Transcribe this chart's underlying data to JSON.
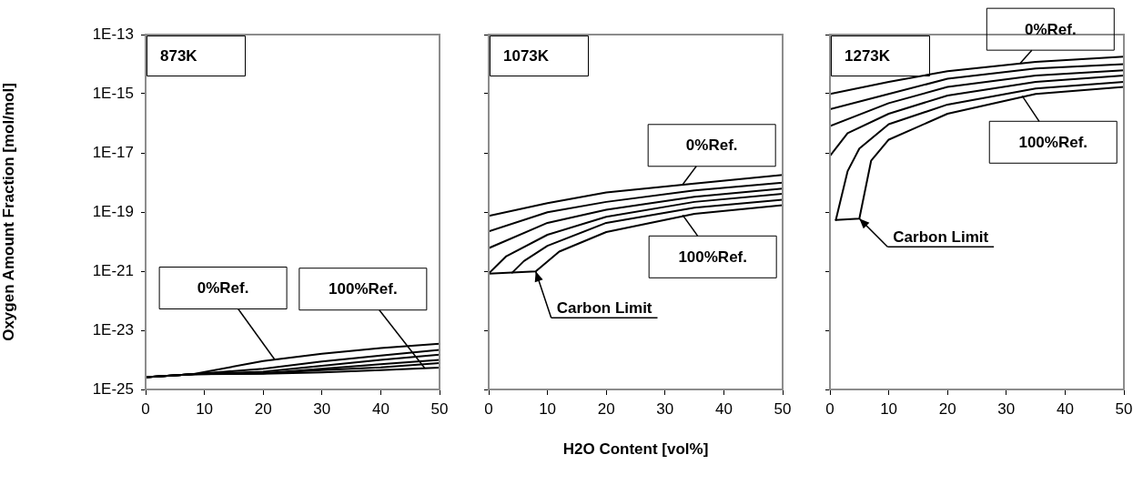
{
  "chart_data": [
    {
      "type": "line",
      "title": "873K",
      "ylabel": "Oxygen Amount Fraction [mol/mol]",
      "log": "y",
      "legend": false,
      "marker": "none",
      "xlim": [
        0,
        50
      ],
      "xticks": [
        0,
        10,
        20,
        30,
        40,
        50
      ],
      "ylim": [
        1e-25,
        1e-13
      ],
      "yticks": [
        {
          "value": 1e-25,
          "label": "1E-25"
        },
        {
          "value": 1e-23,
          "label": "1E-23"
        },
        {
          "value": 1e-21,
          "label": "1E-21"
        },
        {
          "value": 1e-19,
          "label": "1E-19"
        },
        {
          "value": 1e-17,
          "label": "1E-17"
        },
        {
          "value": 1e-15,
          "label": "1E-15"
        },
        {
          "value": 1e-13,
          "label": "1E-13"
        }
      ],
      "series": [
        {
          "color": "#000000",
          "x": [
            0,
            8,
            20,
            30,
            40,
            50
          ],
          "values": [
            2.6e-25,
            3.3e-25,
            9.1e-25,
            1.6e-24,
            2.5e-24,
            3.5e-24
          ]
        },
        {
          "color": "#000000",
          "x": [
            0,
            8,
            20,
            30,
            40,
            50
          ],
          "values": [
            2.6e-25,
            3.3e-25,
            5e-25,
            8.9e-25,
            1.4e-24,
            2.2e-24
          ]
        },
        {
          "color": "#000000",
          "x": [
            0,
            8,
            20,
            30,
            40,
            50
          ],
          "values": [
            2.6e-25,
            3.3e-25,
            4e-25,
            6.3e-25,
            1e-24,
            1.5e-24
          ]
        },
        {
          "color": "#000000",
          "x": [
            0,
            8,
            20,
            30,
            40,
            50
          ],
          "values": [
            2.6e-25,
            3.3e-25,
            3.5e-25,
            5e-25,
            7.1e-25,
            1e-24
          ]
        },
        {
          "color": "#000000",
          "x": [
            0,
            8,
            20,
            30,
            40,
            50
          ],
          "values": [
            2.6e-25,
            3.3e-25,
            3.5e-25,
            4.5e-25,
            5.6e-25,
            7.8e-25
          ]
        },
        {
          "color": "#000000",
          "x": [
            0,
            8,
            20,
            30,
            40,
            50
          ],
          "values": [
            2.6e-25,
            3.3e-25,
            3.4e-25,
            3.8e-25,
            4.5e-25,
            5.5e-25
          ]
        }
      ],
      "annotations": [
        {
          "text": "0%Ref.",
          "x": 22,
          "y": 1e-24
        },
        {
          "text": "100%Ref.",
          "x": 47.5,
          "y": 5.2e-25
        }
      ]
    },
    {
      "type": "line",
      "title": "1073K",
      "xlabel": "H2O Content [vol%]",
      "log": "y",
      "legend": false,
      "marker": "none",
      "tick_labels": "x",
      "xlim": [
        0,
        50
      ],
      "xticks": [
        0,
        10,
        20,
        30,
        40,
        50
      ],
      "ylim": [
        1e-25,
        1e-13
      ],
      "yticks": [
        {
          "value": 1e-25,
          "label": null
        },
        {
          "value": 1e-23,
          "label": null
        },
        {
          "value": 1e-21,
          "label": null
        },
        {
          "value": 1e-19,
          "label": null
        },
        {
          "value": 1e-17,
          "label": null
        },
        {
          "value": 1e-15,
          "label": null
        },
        {
          "value": 1e-13,
          "label": null
        }
      ],
      "series": [
        {
          "color": "#000000",
          "x": [
            0,
            10,
            20,
            35,
            50
          ],
          "values": [
            7.4e-20,
            2e-19,
            4.6e-19,
            9.1e-19,
            1.8e-18
          ]
        },
        {
          "color": "#000000",
          "x": [
            0,
            10,
            20,
            35,
            50
          ],
          "values": [
            2.2e-20,
            9.8e-20,
            2.2e-19,
            5.4e-19,
            9.8e-19
          ]
        },
        {
          "color": "#000000",
          "x": [
            0,
            10,
            20,
            35,
            50
          ],
          "values": [
            6e-21,
            4.3e-20,
            1.2e-19,
            3.3e-19,
            6.2e-19
          ]
        },
        {
          "color": "#000000",
          "x": [
            0,
            3,
            10,
            20,
            35,
            50
          ],
          "values": [
            8.3e-22,
            3.2e-21,
            1.7e-20,
            6.9e-20,
            2.2e-19,
            4.1e-19
          ]
        },
        {
          "color": "#000000",
          "x": [
            4,
            6,
            10,
            20,
            35,
            50
          ],
          "values": [
            8.9e-22,
            2.2e-21,
            7.2e-21,
            4.3e-20,
            1.4e-19,
            2.6e-19
          ]
        },
        {
          "color": "#000000",
          "x": [
            0,
            8,
            12,
            20,
            35,
            50
          ],
          "values": [
            8.3e-22,
            9.8e-22,
            4.6e-21,
            2.1e-20,
            8.7e-20,
            1.7e-19
          ]
        }
      ],
      "annotations": [
        {
          "text": "0%Ref.",
          "x": 33,
          "y": 8.5e-19
        },
        {
          "text": "100%Ref.",
          "x": 33,
          "y": 7.9e-20
        },
        {
          "text": "Carbon Limit",
          "x": 8,
          "y": 9.8e-22
        }
      ]
    },
    {
      "type": "line",
      "title": "1273K",
      "log": "y",
      "legend": false,
      "marker": "none",
      "tick_labels": "x",
      "xlim": [
        0,
        50
      ],
      "xticks": [
        0,
        10,
        20,
        30,
        40,
        50
      ],
      "ylim": [
        1e-25,
        1e-13
      ],
      "yticks": [
        {
          "value": 1e-25,
          "label": null
        },
        {
          "value": 1e-23,
          "label": null
        },
        {
          "value": 1e-21,
          "label": null
        },
        {
          "value": 1e-19,
          "label": null
        },
        {
          "value": 1e-17,
          "label": null
        },
        {
          "value": 1e-15,
          "label": null
        },
        {
          "value": 1e-13,
          "label": null
        }
      ],
      "series": [
        {
          "color": "#000000",
          "x": [
            0,
            10,
            20,
            35,
            50
          ],
          "values": [
            9.8e-16,
            2.5e-15,
            5.8e-15,
            1.2e-14,
            1.8e-14
          ]
        },
        {
          "color": "#000000",
          "x": [
            0,
            10,
            20,
            35,
            50
          ],
          "values": [
            3e-16,
            9.8e-16,
            3.2e-15,
            7.2e-15,
            1e-14
          ]
        },
        {
          "color": "#000000",
          "x": [
            0,
            10,
            20,
            35,
            50
          ],
          "values": [
            8.1e-17,
            4.8e-16,
            1.7e-15,
            4.1e-15,
            6.2e-15
          ]
        },
        {
          "color": "#000000",
          "x": [
            0,
            3,
            10,
            20,
            35,
            50
          ],
          "values": [
            7.8e-18,
            4.6e-17,
            2.1e-16,
            8.7e-16,
            2.5e-15,
            4.1e-15
          ]
        },
        {
          "color": "#000000",
          "x": [
            1,
            3,
            5,
            10,
            20,
            35,
            50
          ],
          "values": [
            5.4e-20,
            2.4e-18,
            1.4e-17,
            9.3e-17,
            4.3e-16,
            1.5e-15,
            2.5e-15
          ]
        },
        {
          "color": "#000000",
          "x": [
            1,
            5,
            7,
            10,
            20,
            35,
            50
          ],
          "values": [
            5.4e-20,
            6e-20,
            5.4e-18,
            2.8e-17,
            2.1e-16,
            9.8e-16,
            1.7e-15
          ]
        }
      ],
      "annotations": [
        {
          "text": "0%Ref.",
          "x": 32.4,
          "y": 1.1e-14
        },
        {
          "text": "100%Ref.",
          "x": 32.7,
          "y": 8.5e-16
        },
        {
          "text": "Carbon Limit",
          "x": 5,
          "y": 6e-20
        }
      ]
    }
  ]
}
